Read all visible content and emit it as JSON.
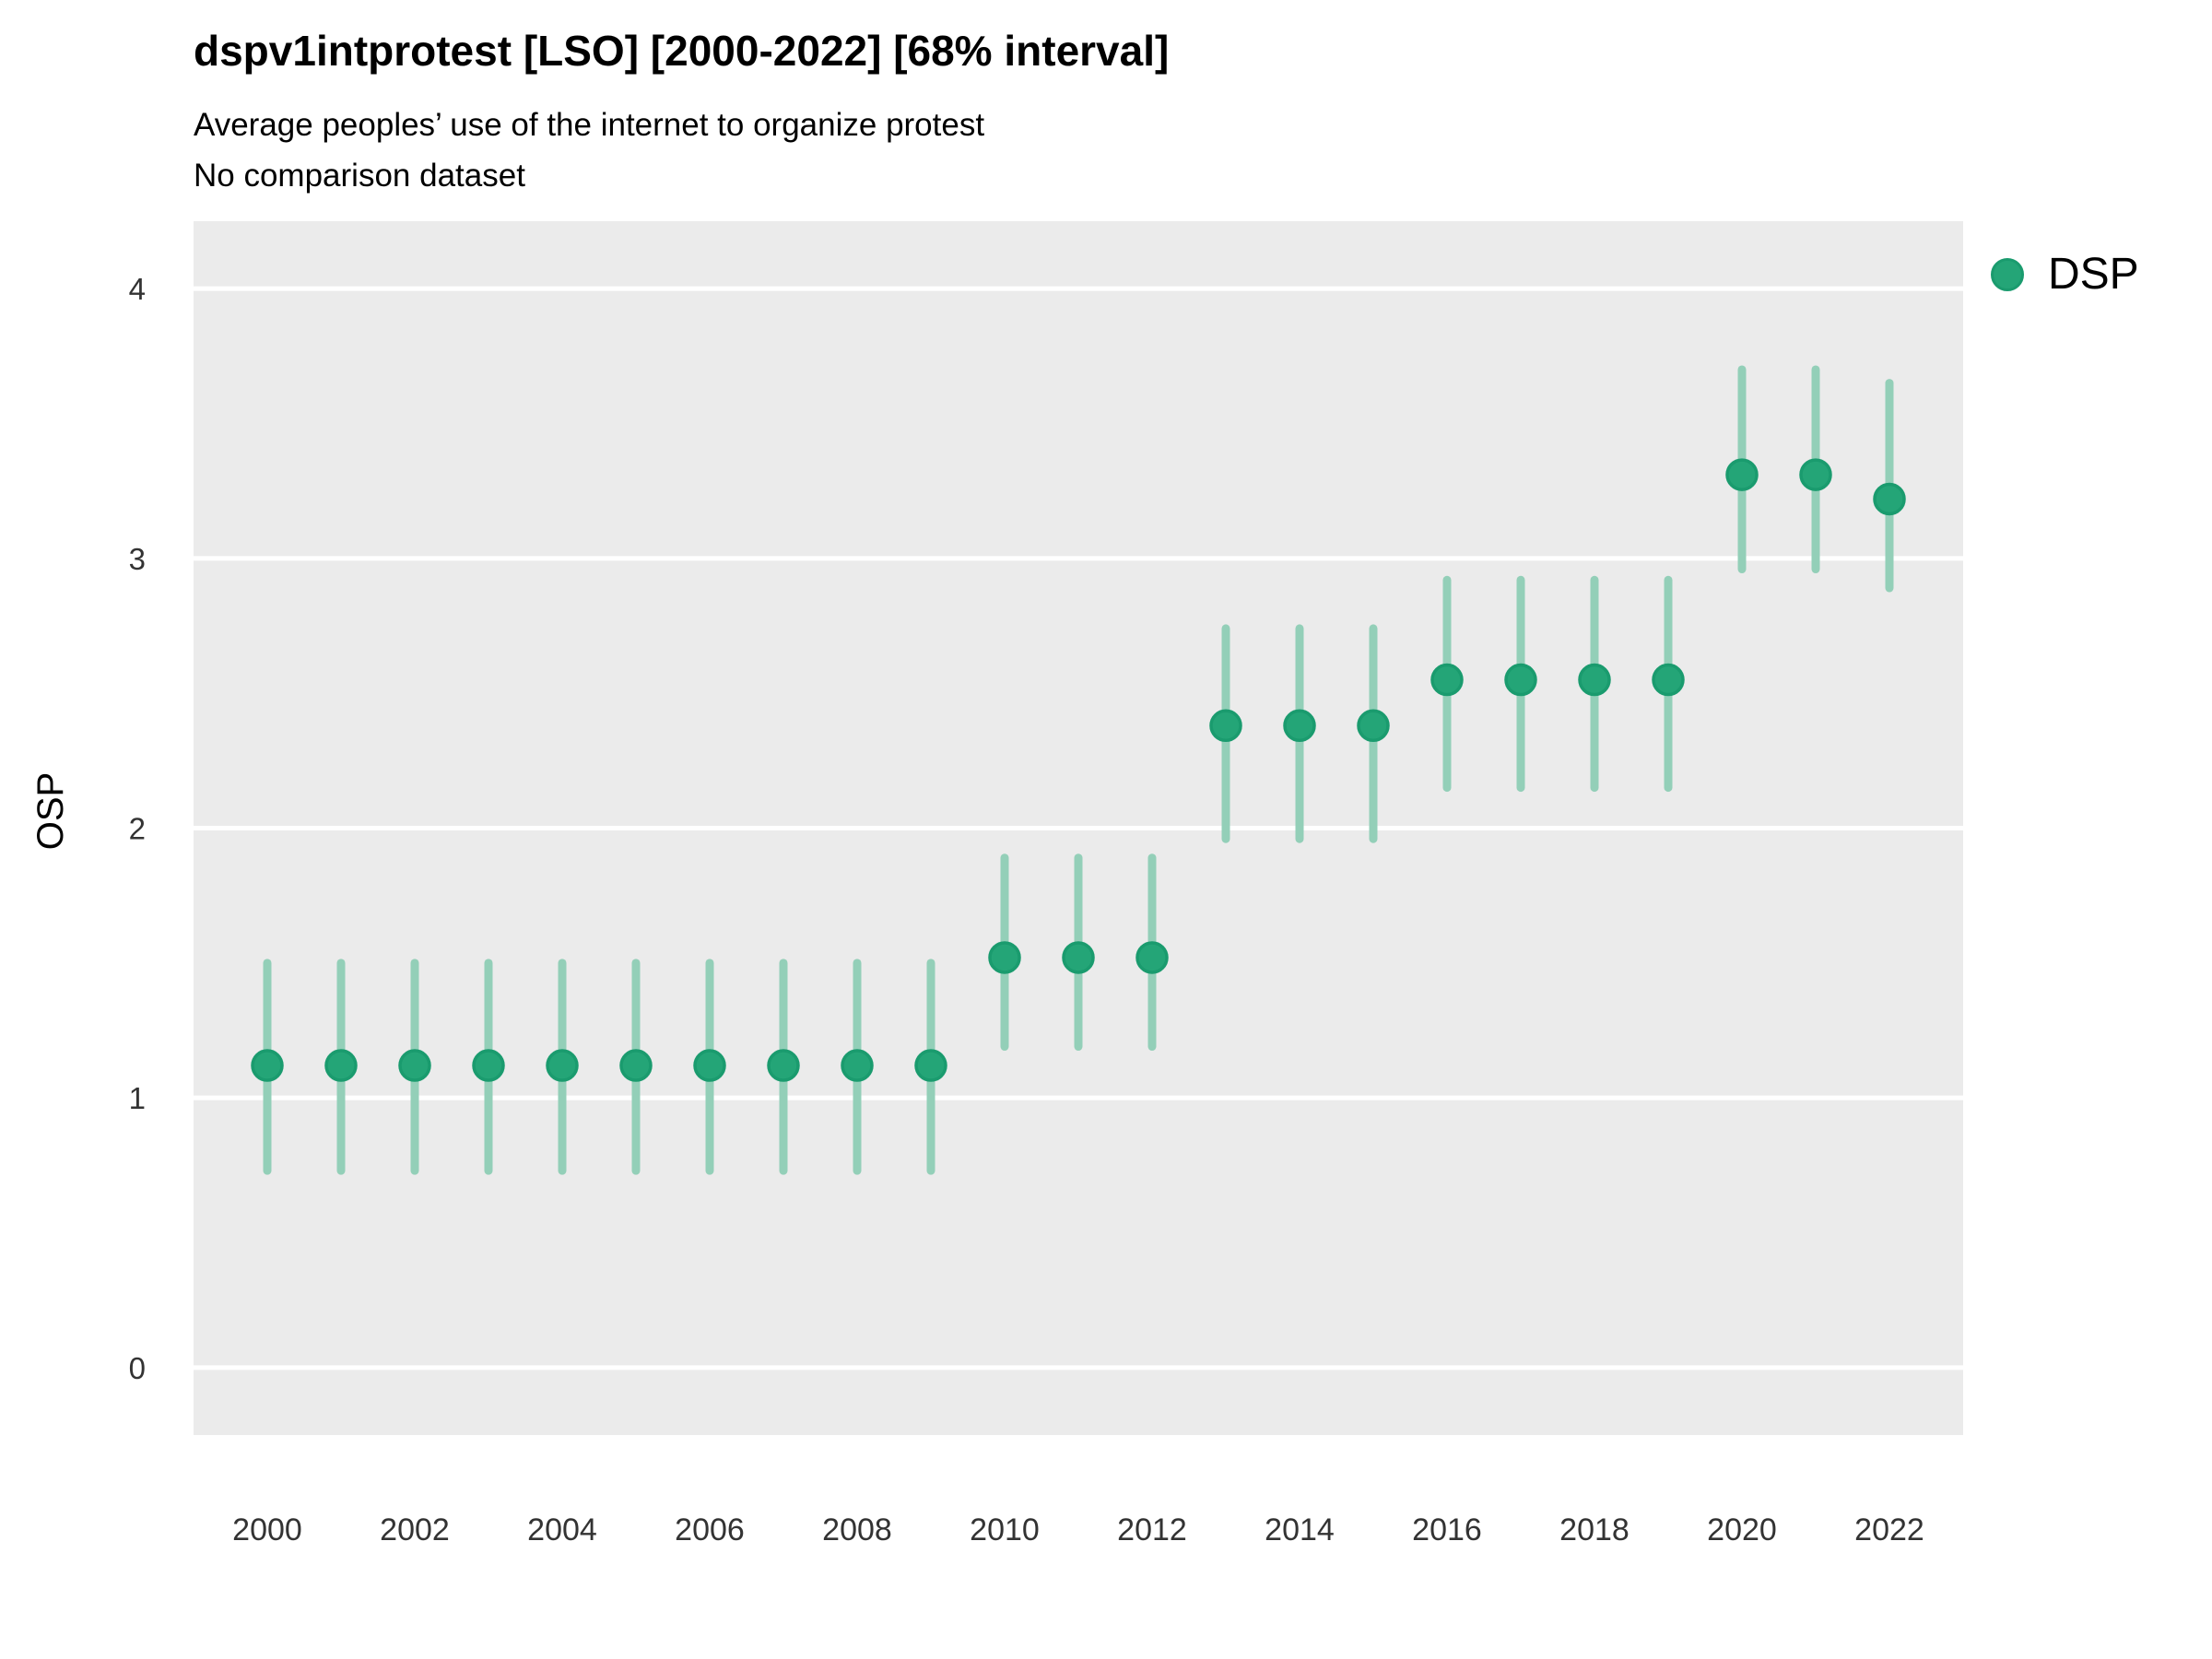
{
  "header": {
    "title": "dspv1intprotest [LSO] [2000-2022] [68% interval]",
    "subtitle_line1": "Average peoples’ use of the internet to organize protest",
    "subtitle_line2": "No comparison dataset"
  },
  "legend": {
    "label": "DSP",
    "marker_color": "#24A577",
    "marker_border_color": "#1A9B6E"
  },
  "chart_data": {
    "type": "scatter",
    "title": "dspv1intprotest [LSO] [2000-2022] [68% interval]",
    "subtitle": [
      "Average peoples’ use of the internet to organize protest",
      "No comparison dataset"
    ],
    "xlabel": "",
    "ylabel": "OSP",
    "interval": "68% interval",
    "legend_position": "right-top",
    "grid": "horizontal major gridlines only, white on gray panel",
    "x_ticks": [
      2000,
      2002,
      2004,
      2006,
      2008,
      2010,
      2012,
      2014,
      2016,
      2018,
      2020,
      2022
    ],
    "y_ticks": [
      0,
      1,
      2,
      3,
      4
    ],
    "xlim": [
      1999,
      2023
    ],
    "ylim": [
      -0.25,
      4.25
    ],
    "series": [
      {
        "name": "DSP",
        "x": [
          2000,
          2001,
          2002,
          2003,
          2004,
          2005,
          2006,
          2007,
          2008,
          2009,
          2010,
          2011,
          2012,
          2013,
          2014,
          2015,
          2016,
          2017,
          2018,
          2019,
          2020,
          2021,
          2022
        ],
        "y": [
          1.12,
          1.12,
          1.12,
          1.12,
          1.12,
          1.12,
          1.12,
          1.12,
          1.12,
          1.12,
          1.52,
          1.52,
          1.52,
          2.38,
          2.38,
          2.38,
          2.55,
          2.55,
          2.55,
          2.55,
          3.31,
          3.31,
          3.22
        ],
        "y_low": [
          0.73,
          0.73,
          0.73,
          0.73,
          0.73,
          0.73,
          0.73,
          0.73,
          0.73,
          0.73,
          1.19,
          1.19,
          1.19,
          1.96,
          1.96,
          1.96,
          2.15,
          2.15,
          2.15,
          2.15,
          2.96,
          2.96,
          2.89
        ],
        "y_high": [
          1.5,
          1.5,
          1.5,
          1.5,
          1.5,
          1.5,
          1.5,
          1.5,
          1.5,
          1.5,
          1.89,
          1.89,
          1.89,
          2.74,
          2.74,
          2.74,
          2.92,
          2.92,
          2.92,
          2.92,
          3.7,
          3.7,
          3.65
        ]
      }
    ],
    "colors": {
      "point": "#24A577",
      "point_border": "#1A9B6E",
      "interval_line": "#93CFB8",
      "panel_bg": "#EBEBEB",
      "grid": "#FFFFFF",
      "axis_text": "#333333"
    }
  }
}
